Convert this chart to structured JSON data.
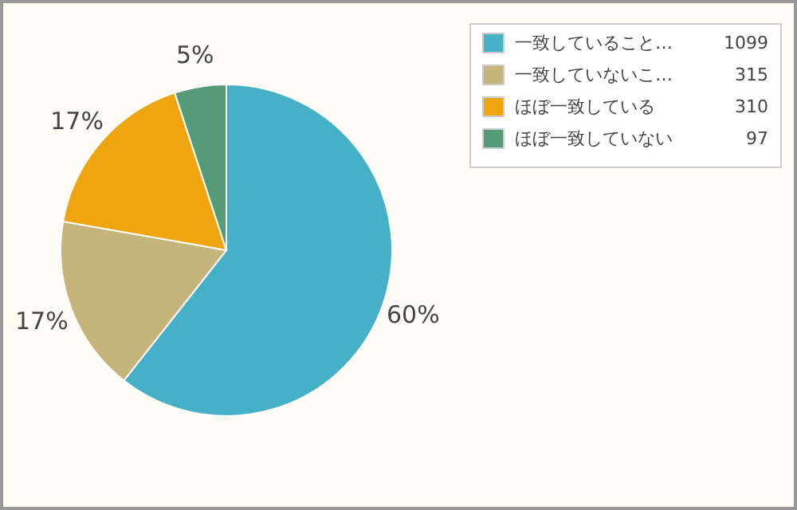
{
  "chart_data": {
    "type": "pie",
    "categories": [
      "一致していること…",
      "一致していないこ…",
      "ほぼ一致している",
      "ほぼ一致していない"
    ],
    "values": [
      60,
      17,
      17,
      5
    ],
    "annotations": [
      "1099",
      "315",
      "310",
      "97"
    ],
    "colors": [
      "#46b1c6",
      "#c6b57a",
      "#eea510",
      "#569a78"
    ],
    "value_labels": [
      "60%",
      "17%",
      "17%",
      "5%"
    ],
    "legend": "top right"
  }
}
